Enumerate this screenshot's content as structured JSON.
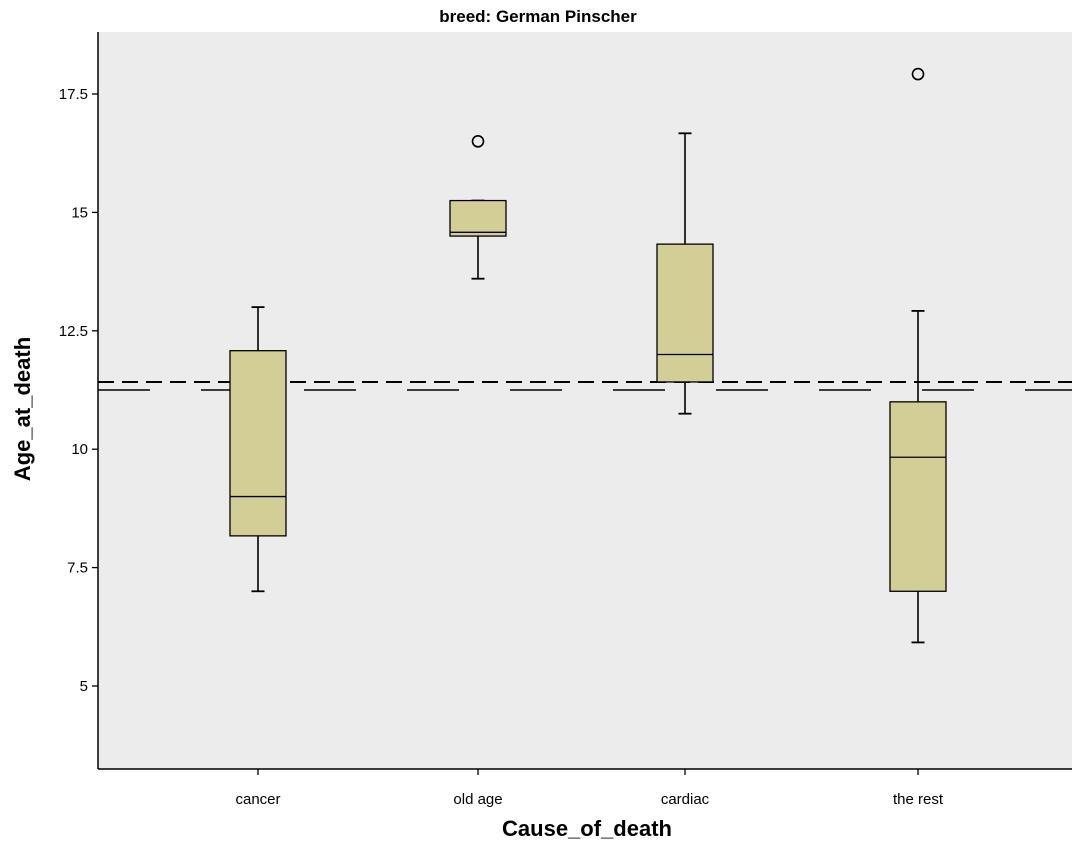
{
  "chart_data": {
    "type": "box",
    "title": "breed: German Pinscher",
    "xlabel": "Cause_of_death",
    "ylabel": "Age_at_death",
    "categories": [
      "cancer",
      "old age",
      "cardiac",
      "the rest"
    ],
    "ylim": [
      3,
      18.7
    ],
    "yticks": [
      5,
      7.5,
      10,
      12.5,
      15,
      17.5
    ],
    "ytick_labels": [
      "5",
      "7.5",
      "10",
      "12.5",
      "15",
      "17.5"
    ],
    "boxes": [
      {
        "category": "cancer",
        "whisker_low": 7.0,
        "q1": 8.17,
        "median": 9.0,
        "q3": 12.08,
        "whisker_high": 13.0,
        "outliers": []
      },
      {
        "category": "old age",
        "whisker_low": 13.6,
        "q1": 14.5,
        "median": 14.58,
        "q3": 15.25,
        "whisker_high": 15.25,
        "outliers": [
          16.5
        ]
      },
      {
        "category": "cardiac",
        "whisker_low": 10.75,
        "q1": 11.42,
        "median": 12.0,
        "q3": 14.33,
        "whisker_high": 16.67,
        "outliers": []
      },
      {
        "category": "the rest",
        "whisker_low": 5.92,
        "q1": 7.0,
        "median": 9.83,
        "q3": 11.0,
        "whisker_high": 12.92,
        "outliers": [
          17.92
        ]
      }
    ],
    "reference_lines": [
      {
        "value": 11.42,
        "style": "dashed"
      },
      {
        "value": 11.25,
        "style": "long-dash"
      }
    ],
    "colors": {
      "box_fill": "#d3cd96",
      "plot_background": "#ececec",
      "stroke": "#000000"
    },
    "grid": false,
    "legend": "none"
  }
}
